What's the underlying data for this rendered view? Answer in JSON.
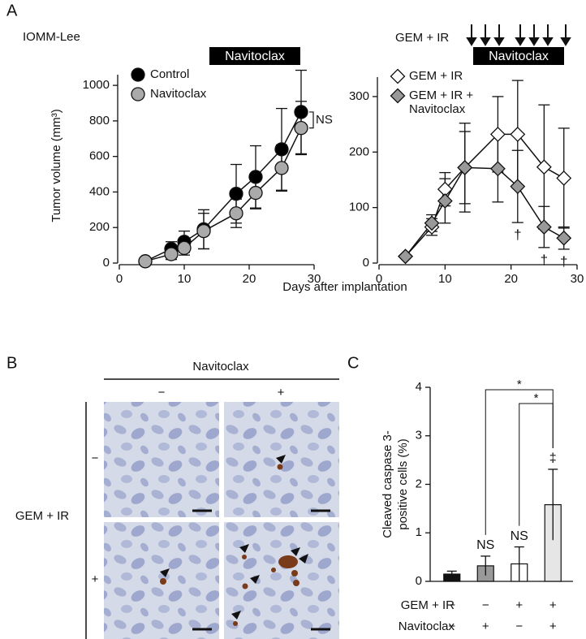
{
  "figure": {
    "panel_labels": [
      "A",
      "B",
      "C"
    ],
    "xlabel": "Days after implantation",
    "micrograph": {
      "column_header": "Navitoclax",
      "column_labels": [
        "−",
        "+"
      ],
      "row_header": "GEM + IR",
      "row_labels": [
        "−",
        "+"
      ]
    }
  },
  "chart_data": [
    {
      "type": "line",
      "title": "IOMM-Lee",
      "treatment_bar": "Navitoclax",
      "significance": "NS",
      "ylabel": "Tumor volume (mm³)",
      "marker": "circle",
      "x": [
        4,
        8,
        10,
        13,
        18,
        21,
        25,
        28
      ],
      "series": [
        {
          "name": "Control",
          "color": "#000000",
          "values": [
            10,
            80,
            120,
            190,
            390,
            485,
            640,
            850
          ],
          "errors": [
            0,
            40,
            60,
            110,
            165,
            175,
            230,
            235
          ]
        },
        {
          "name": "Navitoclax",
          "color": "#aaaaaa",
          "values": [
            10,
            50,
            85,
            180,
            280,
            395,
            535,
            760
          ],
          "errors": [
            0,
            30,
            40,
            100,
            80,
            90,
            130,
            150
          ]
        }
      ],
      "xlim": [
        0,
        30
      ],
      "xticks": [
        0,
        10,
        20,
        30
      ],
      "ylim": [
        0,
        1060
      ],
      "yticks": [
        0,
        200,
        400,
        600,
        800,
        1000
      ]
    },
    {
      "type": "line",
      "treatment_label": "GEM + IR",
      "treatment_bar": "Navitoclax",
      "marker": "diamond",
      "x": [
        4,
        8,
        10,
        13,
        18,
        21,
        25,
        28
      ],
      "series": [
        {
          "name": "GEM + IR",
          "color": "#ffffff",
          "values": [
            12,
            65,
            133,
            172,
            232,
            232,
            173,
            153
          ],
          "errors": [
            0,
            15,
            30,
            80,
            68,
            97,
            112,
            90
          ]
        },
        {
          "name": "GEM + IR + Navitoclax",
          "color": "#999999",
          "values": [
            12,
            72,
            112,
            172,
            170,
            138,
            65,
            45
          ],
          "errors": [
            0,
            15,
            40,
            65,
            60,
            65,
            37,
            20
          ],
          "point_labels": [
            null,
            null,
            null,
            null,
            null,
            "†",
            "†",
            "†"
          ]
        }
      ],
      "xlim": [
        0,
        30
      ],
      "xticks": [
        0,
        10,
        20,
        30
      ],
      "ylim": [
        0,
        335
      ],
      "yticks": [
        0,
        100,
        200,
        300
      ]
    },
    {
      "type": "bar",
      "ylabel": [
        "Cleaved caspase 3-",
        "positive cells (%)"
      ],
      "values": [
        0.15,
        0.32,
        0.36,
        1.58
      ],
      "errors": [
        0.06,
        0.2,
        0.35,
        0.73
      ],
      "colors": [
        "#111111",
        "#999999",
        "#ffffff",
        "#e6e6e6"
      ],
      "point_labels": [
        null,
        "NS",
        "NS",
        "‡"
      ],
      "comparisons": [
        {
          "from": 1,
          "to": 3,
          "label": "*"
        },
        {
          "from": 2,
          "to": 3,
          "label": "*"
        }
      ],
      "conditions": [
        {
          "name": "GEM + IR",
          "values": [
            "−",
            "−",
            "+",
            "+"
          ]
        },
        {
          "name": "Navitoclax",
          "values": [
            "−",
            "+",
            "−",
            "+"
          ]
        }
      ],
      "ylim": [
        0,
        4
      ],
      "yticks": [
        0,
        1,
        2,
        3,
        4
      ]
    }
  ]
}
